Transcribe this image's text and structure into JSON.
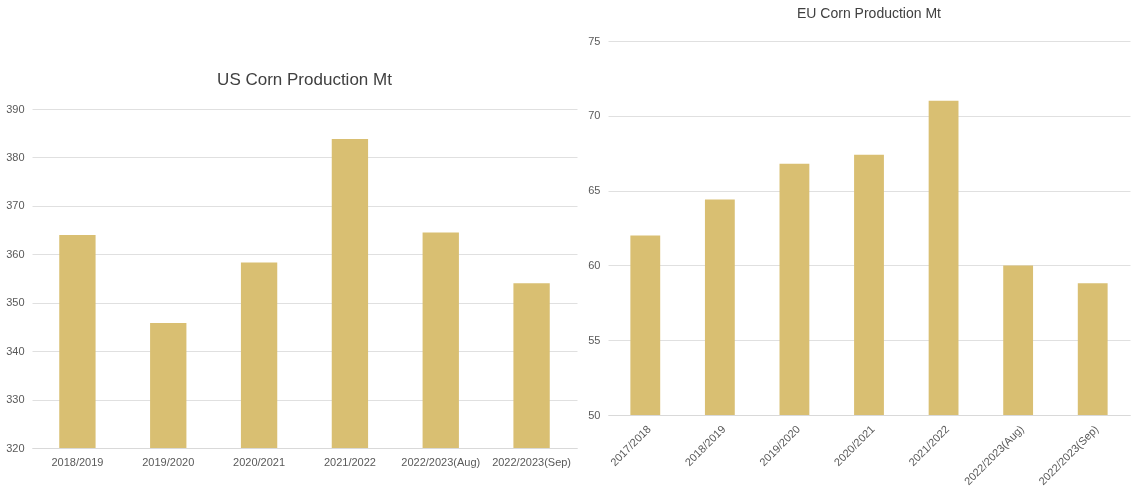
{
  "chart_data": [
    {
      "type": "bar",
      "title": "US Corn Production Mt",
      "categories": [
        "2018/2019",
        "2019/2020",
        "2020/2021",
        "2021/2022",
        "2022/2023(Aug)",
        "2022/2023(Sep)"
      ],
      "series": [
        {
          "color": "#d9bf72",
          "values": [
            364,
            345.8,
            358.3,
            383.8,
            364.5,
            354
          ]
        }
      ],
      "ylim": [
        320,
        390
      ],
      "yticks": [
        320,
        330,
        340,
        350,
        360,
        370,
        380,
        390
      ],
      "grid": "y",
      "legend": false
    },
    {
      "type": "bar",
      "title": "EU Corn Production Mt",
      "categories": [
        "2017/2018",
        "2018/2019",
        "2019/2020",
        "2020/2021",
        "2021/2022",
        "2022/2023(Aug)",
        "2022/2023(Sep)"
      ],
      "series": [
        {
          "color": "#d9bf72",
          "values": [
            62,
            64.4,
            66.8,
            67.4,
            71,
            60,
            58.8
          ]
        }
      ],
      "ylim": [
        50,
        75
      ],
      "yticks": [
        50,
        55,
        60,
        65,
        70,
        75
      ],
      "grid": "y",
      "legend": false
    }
  ]
}
